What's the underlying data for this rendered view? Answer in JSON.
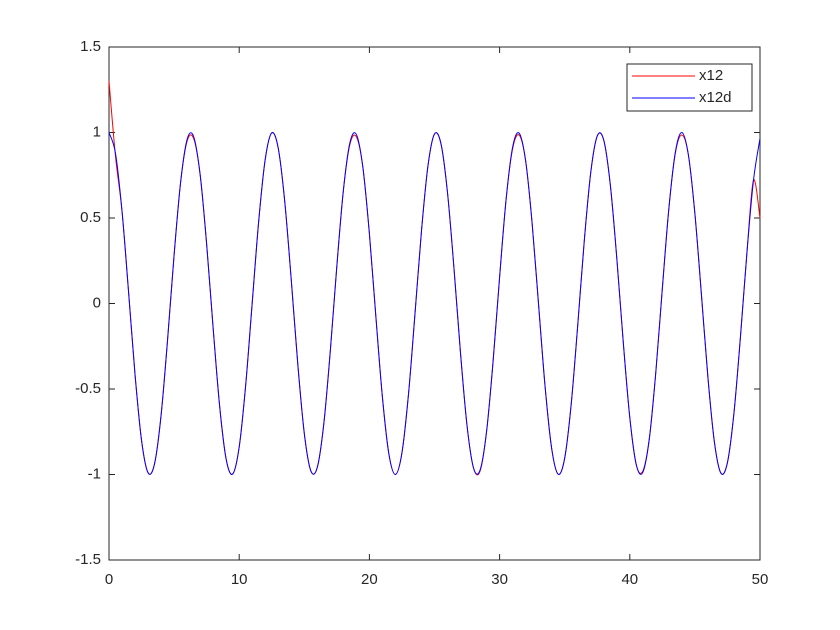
{
  "chart_data": {
    "type": "line",
    "x": [
      0,
      0.5,
      1,
      1.5,
      2,
      2.5,
      3,
      3.5,
      4,
      4.5,
      5,
      5.5,
      6,
      6.5,
      7,
      7.5,
      8,
      8.5,
      9,
      9.5,
      10,
      10.5,
      11,
      11.5,
      12,
      12.5,
      13,
      13.5,
      14,
      14.5,
      15,
      15.5,
      16,
      16.5,
      17,
      17.5,
      18,
      18.5,
      19,
      19.5,
      20,
      20.5,
      21,
      21.5,
      22,
      22.5,
      23,
      23.5,
      24,
      24.5,
      25,
      25.5,
      26,
      26.5,
      27,
      27.5,
      28,
      28.5,
      29,
      29.5,
      30,
      30.5,
      31,
      31.5,
      32,
      32.5,
      33,
      33.5,
      34,
      34.5,
      35,
      35.5,
      36,
      36.5,
      37,
      37.5,
      38,
      38.5,
      39,
      39.5,
      40,
      40.5,
      41,
      41.5,
      42,
      42.5,
      43,
      43.5,
      44,
      44.5,
      45,
      45.5,
      46,
      46.5,
      47,
      47.5,
      48,
      48.5,
      49,
      49.5,
      50
    ],
    "series": [
      {
        "name": "x12",
        "color": "#ff0000",
        "values": [
          1.3,
          0.86,
          0.54,
          0.0707,
          -0.4161,
          -0.8011,
          -0.99,
          -0.9365,
          -0.6536,
          -0.2108,
          0.2837,
          0.7087,
          0.95,
          0.965,
          0.7539,
          0.3466,
          -0.1455,
          -0.602,
          -0.9111,
          -0.9972,
          -0.8391,
          -0.4755,
          0.0044,
          0.4833,
          0.8439,
          0.9978,
          0.9074,
          0.5949,
          0.1367,
          -0.3549,
          -0.7597,
          -0.9782,
          -0.9577,
          -0.7023,
          -0.2752,
          0.2194,
          0.6603,
          0.93,
          0.975,
          0.7958,
          0.4081,
          -0.0797,
          -0.5477,
          -0.8817,
          -0.9999,
          -0.8733,
          -0.5328,
          -0.0619,
          0.4242,
          0.8064,
          0.9912,
          0.9333,
          0.6469,
          0.2022,
          -0.2921,
          -0.7149,
          -0.9626,
          -0.98,
          -0.748,
          -0.3383,
          0.1543,
          0.6091,
          0.905,
          0.985,
          0.8342,
          0.4677,
          -0.0133,
          -0.4911,
          -0.8485,
          -0.9986,
          -0.9037,
          -0.5879,
          -0.128,
          0.3632,
          0.7654,
          0.9796,
          0.9551,
          0.696,
          0.2666,
          -0.228,
          -0.6669,
          -0.9434,
          -0.98,
          -0.7902,
          -0.3998,
          0.0885,
          0.5551,
          0.88,
          0.985,
          0.8688,
          0.5253,
          0.0531,
          -0.4322,
          -0.8116,
          -0.9923,
          -0.9298,
          -0.6401,
          -0.1935,
          0.3006,
          0.721,
          0.5
        ]
      },
      {
        "name": "x12d",
        "color": "#0000ff",
        "values": [
          1,
          0.8776,
          0.5403,
          0.0707,
          -0.4161,
          -0.8011,
          -0.99,
          -0.9365,
          -0.6536,
          -0.2108,
          0.2837,
          0.7087,
          0.9602,
          0.9766,
          0.7539,
          0.3466,
          -0.1455,
          -0.602,
          -0.9111,
          -0.9972,
          -0.8391,
          -0.4755,
          0.0044,
          0.4833,
          0.8439,
          0.9978,
          0.9074,
          0.5949,
          0.1367,
          -0.3549,
          -0.7597,
          -0.9782,
          -0.9577,
          -0.7023,
          -0.2752,
          0.2194,
          0.6603,
          0.9398,
          0.9887,
          0.7958,
          0.4081,
          -0.0797,
          -0.5477,
          -0.8817,
          -0.9999,
          -0.8733,
          -0.5328,
          -0.0619,
          0.4242,
          0.8064,
          0.9912,
          0.9333,
          0.6469,
          0.2022,
          -0.2921,
          -0.7149,
          -0.9626,
          -0.9742,
          -0.748,
          -0.3383,
          0.1543,
          0.6091,
          0.9147,
          0.9964,
          0.8342,
          0.4677,
          -0.0133,
          -0.4911,
          -0.8485,
          -0.9986,
          -0.9037,
          -0.5879,
          -0.128,
          0.3632,
          0.7654,
          0.9796,
          0.9551,
          0.696,
          0.2666,
          -0.228,
          -0.6669,
          -0.9434,
          -0.9873,
          -0.7902,
          -0.3998,
          0.0885,
          0.5551,
          0.8859,
          0.9998,
          0.8688,
          0.5253,
          0.0531,
          -0.4322,
          -0.8116,
          -0.9923,
          -0.9298,
          -0.6401,
          -0.1935,
          0.3006,
          0.721,
          0.965
        ]
      }
    ],
    "xlim": [
      0,
      50
    ],
    "xticks": [
      0,
      10,
      20,
      30,
      40,
      50
    ],
    "ylim": [
      -1.5,
      1.5
    ],
    "yticks": [
      -1.5,
      -1,
      -0.5,
      0,
      0.5,
      1,
      1.5
    ],
    "legend": "top-right"
  }
}
